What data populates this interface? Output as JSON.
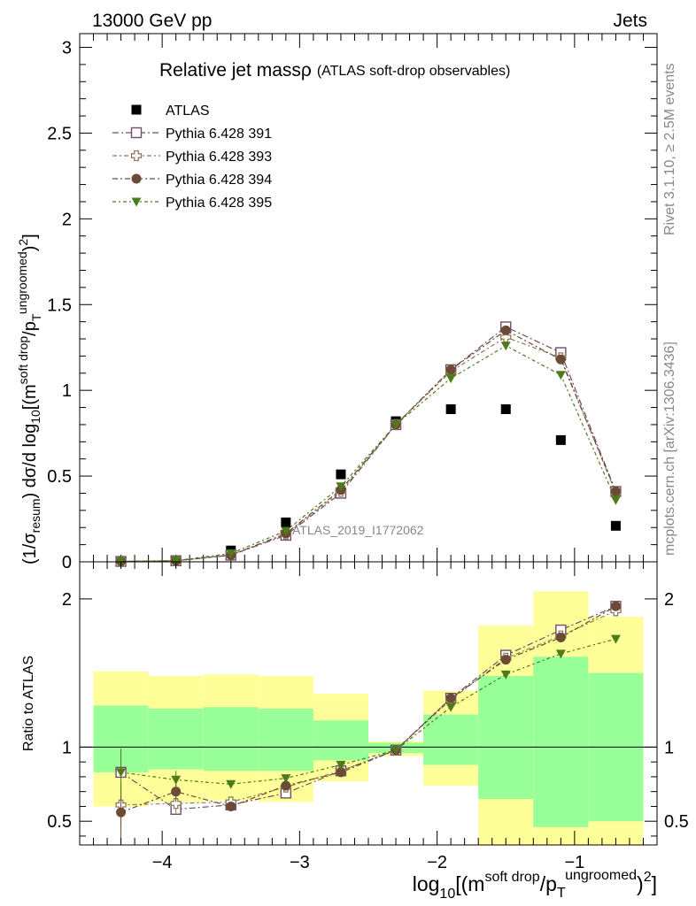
{
  "header": {
    "beam": "13000 GeV pp",
    "process": "Jets",
    "title": "Relative jet massρ",
    "subtitle": "(ATLAS soft-drop observables)",
    "rivet_label": "Rivet 3.1.10, ≥ 2.5M events",
    "mcplots_label": "mcplots.cern.ch [arXiv:1306.3436]",
    "analysis_id": "ATLAS_2019_I1772062"
  },
  "colors": {
    "data": "#000000",
    "p391": "#734e69",
    "p393": "#8c7d5a",
    "p394": "#6b4b34",
    "p395": "#4d7a1a",
    "band_inner": "#99ff99",
    "band_outer": "#ffff99"
  },
  "chart_data": [
    {
      "type": "scatter",
      "panel": "main",
      "ylabel": "(1/σresum) dσ/d log10[(msoft drop/pTungroomed)2]",
      "xlim": [
        -4.6,
        -0.4
      ],
      "ylim": [
        0,
        3.08
      ],
      "yticks": [
        "0",
        "0.5",
        "1",
        "1.5",
        "2",
        "2.5",
        "3"
      ],
      "bins": [
        -4.5,
        -4.1,
        -3.7,
        -3.3,
        -2.9,
        -2.5,
        -2.1,
        -1.7,
        -1.3,
        -0.9,
        -0.5
      ],
      "x": [
        -4.3,
        -3.9,
        -3.5,
        -3.1,
        -2.7,
        -2.3,
        -1.9,
        -1.5,
        -1.1,
        -0.7
      ],
      "series": [
        {
          "name": "ATLAS",
          "key": "data",
          "marker": "square-filled",
          "values": [
            0.003,
            0.009,
            0.066,
            0.23,
            0.51,
            0.82,
            0.89,
            0.89,
            0.71,
            0.21
          ]
        },
        {
          "name": "Pythia 6.428 391",
          "key": "p391",
          "marker": "square-open",
          "values": [
            0.0025,
            0.006,
            0.039,
            0.155,
            0.4,
            0.8,
            1.12,
            1.37,
            1.22,
            0.41
          ]
        },
        {
          "name": "Pythia 6.428 393",
          "key": "p393",
          "marker": "cross-open",
          "values": [
            0.0025,
            0.006,
            0.041,
            0.16,
            0.41,
            0.8,
            1.11,
            1.31,
            1.19,
            0.4
          ]
        },
        {
          "name": "Pythia 6.428 394",
          "key": "p394",
          "marker": "circle-filled",
          "values": [
            0.0025,
            0.006,
            0.039,
            0.165,
            0.42,
            0.8,
            1.12,
            1.35,
            1.18,
            0.41
          ]
        },
        {
          "name": "Pythia 6.428 395",
          "key": "p395",
          "marker": "triangle-down-filled",
          "values": [
            0.0025,
            0.007,
            0.049,
            0.18,
            0.44,
            0.8,
            1.07,
            1.26,
            1.09,
            0.36
          ]
        }
      ]
    },
    {
      "type": "scatter",
      "panel": "ratio",
      "ylabel": "Ratio to ATLAS",
      "xlabel": "log10[(msoft drop/pTungroomed)2]",
      "xlim": [
        -4.6,
        -0.4
      ],
      "ylim": [
        0.34,
        2.25
      ],
      "yticks": [
        "0.5",
        "1",
        "2"
      ],
      "xticks": [
        "−4",
        "−3",
        "−2",
        "−1"
      ],
      "reference_line": 1,
      "band_inner": {
        "low": [
          0.83,
          0.85,
          0.84,
          0.84,
          0.91,
          0.96,
          0.88,
          0.65,
          0.46,
          0.5
        ],
        "high": [
          1.28,
          1.26,
          1.27,
          1.26,
          1.18,
          1.03,
          1.22,
          1.48,
          1.61,
          1.5
        ]
      },
      "band_outer": {
        "low": [
          0.6,
          0.63,
          0.64,
          0.63,
          0.77,
          0.94,
          0.74,
          0.3,
          0.3,
          0.3
        ],
        "high": [
          1.51,
          1.48,
          1.49,
          1.48,
          1.36,
          1.04,
          1.38,
          1.82,
          2.05,
          1.88
        ]
      },
      "x": [
        -4.3,
        -3.9,
        -3.5,
        -3.1,
        -2.7,
        -2.3,
        -1.9,
        -1.5,
        -1.1,
        -0.7
      ],
      "series": [
        {
          "name": "Pythia 6.428 391",
          "key": "p391",
          "marker": "square-open",
          "values": [
            0.83,
            0.58,
            0.61,
            0.69,
            0.84,
            0.98,
            1.33,
            1.62,
            1.79,
            1.95
          ],
          "errors": [
            0.0,
            0.0,
            0.0,
            0.0,
            0.0,
            0.0,
            0.0,
            0.0,
            0.0,
            0.0
          ]
        },
        {
          "name": "Pythia 6.428 393",
          "key": "p393",
          "marker": "cross-open",
          "values": [
            0.61,
            0.62,
            0.63,
            0.73,
            0.84,
            0.98,
            1.32,
            1.6,
            1.75,
            1.92
          ],
          "errors": [
            0.14,
            0.07,
            0.0,
            0.0,
            0.0,
            0.0,
            0.0,
            0.0,
            0.0,
            0.0
          ]
        },
        {
          "name": "Pythia 6.428 394",
          "key": "p394",
          "marker": "circle-filled",
          "values": [
            0.56,
            0.7,
            0.6,
            0.74,
            0.83,
            0.98,
            1.33,
            1.59,
            1.74,
            1.95
          ],
          "errors": [
            0.2,
            0.07,
            0.03,
            0.0,
            0.0,
            0.0,
            0.0,
            0.0,
            0.0,
            0.0
          ]
        },
        {
          "name": "Pythia 6.428 395",
          "key": "p395",
          "marker": "triangle-down-filled",
          "values": [
            0.83,
            0.78,
            0.75,
            0.79,
            0.88,
            0.98,
            1.27,
            1.49,
            1.63,
            1.73
          ],
          "errors": [
            0.16,
            0.06,
            0.0,
            0.0,
            0.0,
            0.0,
            0.0,
            0.0,
            0.0,
            0.0
          ]
        }
      ]
    }
  ]
}
